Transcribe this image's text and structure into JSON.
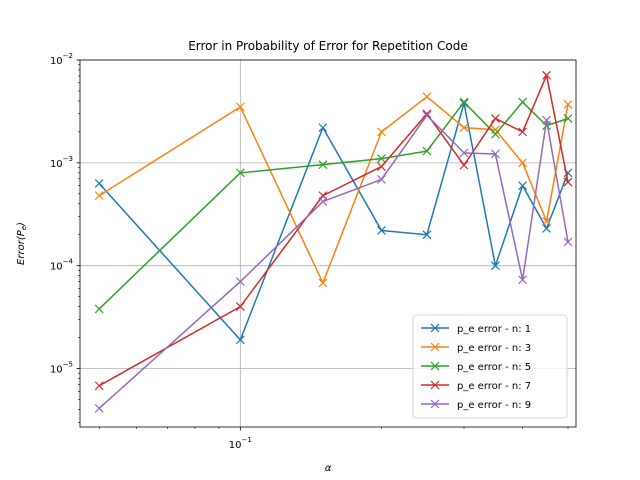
{
  "chart_data": {
    "type": "line",
    "title": "Error in Probability of Error for Repetition Code",
    "xlabel": "α",
    "ylabel_main": "Error(P",
    "ylabel_sub": "e",
    "ylabel_close": ")",
    "xscale": "log",
    "yscale": "log",
    "xlim": [
      0.0455,
      0.52
    ],
    "ylim": [
      2.7e-06,
      0.01
    ],
    "grid": true,
    "legend_position": "bottom-right",
    "x_ticks": [
      {
        "value": 0.1,
        "base": "10",
        "exp": "−1"
      }
    ],
    "y_ticks": [
      {
        "value": 1e-05,
        "base": "10",
        "exp": "−5"
      },
      {
        "value": 0.0001,
        "base": "10",
        "exp": "−4"
      },
      {
        "value": 0.001,
        "base": "10",
        "exp": "−3"
      },
      {
        "value": 0.01,
        "base": "10",
        "exp": "−2"
      }
    ],
    "x": [
      0.05,
      0.1,
      0.15,
      0.2,
      0.25,
      0.3,
      0.35,
      0.4,
      0.45,
      0.5
    ],
    "series": [
      {
        "name": "p_e error - n: 1",
        "color": "#1f77b4",
        "values": [
          0.00063,
          1.9e-05,
          0.0022,
          0.00022,
          0.0002,
          0.0038,
          0.0001,
          0.0006,
          0.00023,
          0.0008
        ]
      },
      {
        "name": "p_e error - n: 3",
        "color": "#ff7f0e",
        "values": [
          0.00048,
          0.0035,
          6.8e-05,
          0.002,
          0.0044,
          0.0022,
          0.0021,
          0.001,
          0.00027,
          0.0037
        ]
      },
      {
        "name": "p_e error - n: 5",
        "color": "#2ca02c",
        "values": [
          3.8e-05,
          0.0008,
          0.00096,
          0.0011,
          0.0013,
          0.0039,
          0.0019,
          0.0039,
          0.0023,
          0.0027
        ]
      },
      {
        "name": "p_e error - n: 7",
        "color": "#d62728",
        "values": [
          6.8e-06,
          4e-05,
          0.00048,
          0.00092,
          0.003,
          0.00095,
          0.0027,
          0.002,
          0.0071,
          0.00065
        ]
      },
      {
        "name": "p_e error - n: 9",
        "color": "#9467bd",
        "values": [
          4.1e-06,
          7e-05,
          0.00042,
          0.00069,
          0.0029,
          0.00125,
          0.00122,
          7.3e-05,
          0.0026,
          0.00017
        ]
      }
    ]
  }
}
